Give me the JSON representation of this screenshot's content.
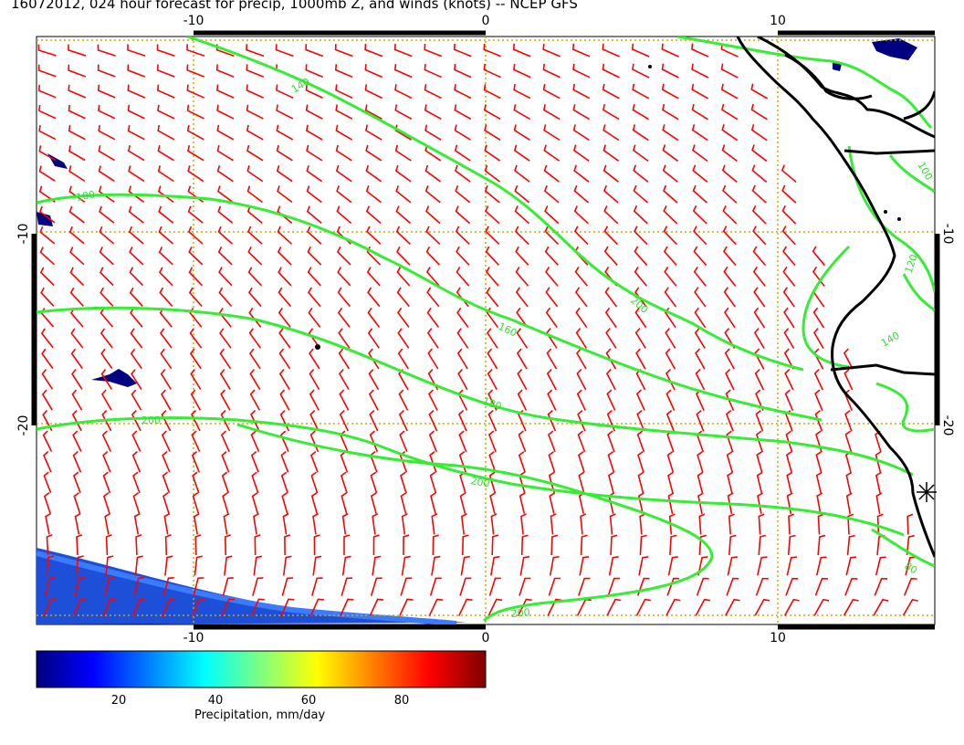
{
  "title": "16072012, 024 hour forecast for precip, 1000mb Z, and winds (knots) -- NCEP GFS",
  "map": {
    "lon_ticks": [
      "-10",
      "0",
      "10"
    ],
    "lat_ticks": [
      "-10",
      "-20"
    ],
    "contour_labels": [
      "140",
      "100",
      "160",
      "180",
      "200",
      "200",
      "200",
      "200",
      "140",
      "100",
      "120",
      "140",
      "80"
    ],
    "colors": {
      "contour": "#33ee33",
      "wind_barb": "#ff0000",
      "grid": "#ccaa00",
      "coast": "#000000",
      "precip_low": "#000080",
      "precip_high": "#1e90ff"
    },
    "marker_icon": "asterisk-station-icon"
  },
  "colorbar": {
    "title": "Precipitation, mm/day",
    "ticks": [
      "20",
      "40",
      "60",
      "80"
    ],
    "colors": [
      "#00007f",
      "#0000ff",
      "#007fff",
      "#00ffff",
      "#7fff7f",
      "#ffff00",
      "#ff7f00",
      "#ff0000",
      "#7f0000"
    ]
  }
}
